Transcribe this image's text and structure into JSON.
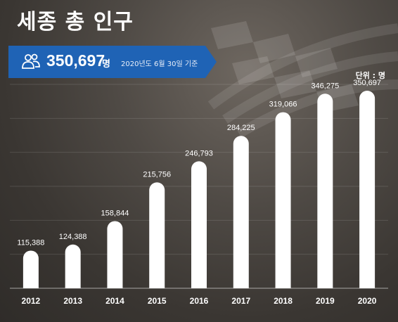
{
  "header": {
    "title": "세종 총 인구"
  },
  "banner": {
    "population": "350,697",
    "unit": "명",
    "as_of": "2020년도 6월 30일 기준",
    "icon": "people-icon",
    "color": "#1f63b5"
  },
  "chart_unit": "단위 : 명",
  "chart_data": {
    "type": "bar",
    "categories": [
      "2012",
      "2013",
      "2014",
      "2015",
      "2016",
      "2017",
      "2018",
      "2019",
      "2020"
    ],
    "values": [
      115388,
      124388,
      158844,
      215756,
      246793,
      284225,
      319066,
      346275,
      350697
    ],
    "data_labels": [
      "115,388",
      "124,388",
      "158,844",
      "215,756",
      "246,793",
      "284,225",
      "319,066",
      "346,275",
      "350,697"
    ],
    "ylim": [
      60000,
      360000
    ],
    "grid": true,
    "bar_color": "#ffffff"
  }
}
